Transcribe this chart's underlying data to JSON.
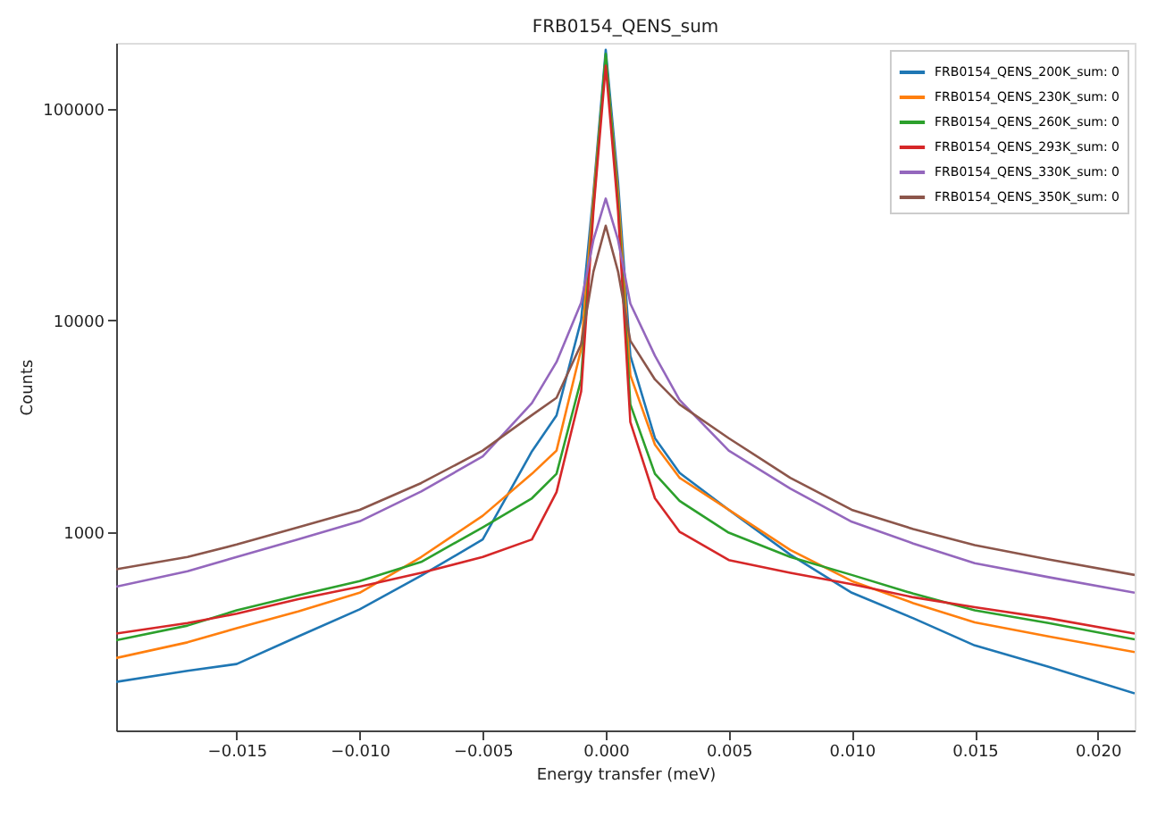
{
  "chart_data": {
    "type": "line",
    "title": "FRB0154_QENS_sum",
    "xlabel": "Energy transfer (meV)",
    "ylabel": "Counts",
    "log": "y",
    "grid": false,
    "legend": "top right",
    "xlim": [
      -0.0199,
      0.0215
    ],
    "ylim": [
      115,
      205000
    ],
    "xticks": [
      {
        "value": -0.015,
        "label": "−0.015"
      },
      {
        "value": -0.01,
        "label": "−0.010"
      },
      {
        "value": -0.005,
        "label": "−0.005"
      },
      {
        "value": 0,
        "label": "0.000"
      },
      {
        "value": 0.005,
        "label": "0.005"
      },
      {
        "value": 0.01,
        "label": "0.010"
      },
      {
        "value": 0.015,
        "label": "0.015"
      },
      {
        "value": 0.02,
        "label": "0.020"
      }
    ],
    "yticks": [
      1000,
      10000,
      100000
    ],
    "x": [
      -0.0199,
      -0.017,
      -0.015,
      -0.0125,
      -0.01,
      -0.0075,
      -0.005,
      -0.003,
      -0.002,
      -0.001,
      -0.0005,
      0,
      0.0005,
      0.001,
      0.002,
      0.003,
      0.005,
      0.0075,
      0.01,
      0.0125,
      0.015,
      0.018,
      0.0215
    ],
    "series": [
      {
        "name": "FRB0154_QENS_200K_sum: 0",
        "color": "#1f77b4",
        "values": [
          195,
          220,
          237,
          320,
          430,
          620,
          920,
          2400,
          3550,
          10000,
          40000,
          190000,
          45000,
          6800,
          2770,
          1900,
          1270,
          780,
          515,
          390,
          290,
          230,
          172
        ]
      },
      {
        "name": "FRB0154_QENS_230K_sum: 0",
        "color": "#ff7f0e",
        "values": [
          253,
          300,
          350,
          420,
          515,
          760,
          1190,
          1880,
          2420,
          7300,
          38000,
          175000,
          40000,
          5500,
          2580,
          1800,
          1270,
          820,
          585,
          460,
          373,
          320,
          270
        ]
      },
      {
        "name": "FRB0154_QENS_260K_sum: 0",
        "color": "#2ca02c",
        "values": [
          307,
          360,
          425,
          500,
          585,
          720,
          1050,
          1440,
          1880,
          5250,
          35000,
          182000,
          36000,
          4000,
          1880,
          1400,
          990,
          760,
          625,
          510,
          425,
          370,
          310
        ]
      },
      {
        "name": "FRB0154_QENS_293K_sum: 0",
        "color": "#d62728",
        "values": [
          330,
          370,
          410,
          480,
          550,
          640,
          760,
          920,
          1540,
          4600,
          33000,
          160000,
          33000,
          3300,
          1440,
          1000,
          735,
          640,
          565,
          490,
          440,
          390,
          330
        ]
      },
      {
        "name": "FRB0154_QENS_330K_sum: 0",
        "color": "#9467bd",
        "values": [
          550,
          650,
          760,
          920,
          1120,
          1550,
          2270,
          4060,
          6350,
          12100,
          24000,
          37600,
          24000,
          12000,
          6800,
          4200,
          2420,
          1600,
          1115,
          880,
          710,
          610,
          515
        ]
      },
      {
        "name": "FRB0154_QENS_350K_sum: 0",
        "color": "#8c564b",
        "values": [
          665,
          760,
          870,
          1050,
          1270,
          1700,
          2420,
          3560,
          4300,
          7700,
          17000,
          28000,
          17000,
          8000,
          5250,
          4000,
          2770,
          1800,
          1270,
          1030,
          865,
          740,
          625
        ]
      }
    ]
  }
}
